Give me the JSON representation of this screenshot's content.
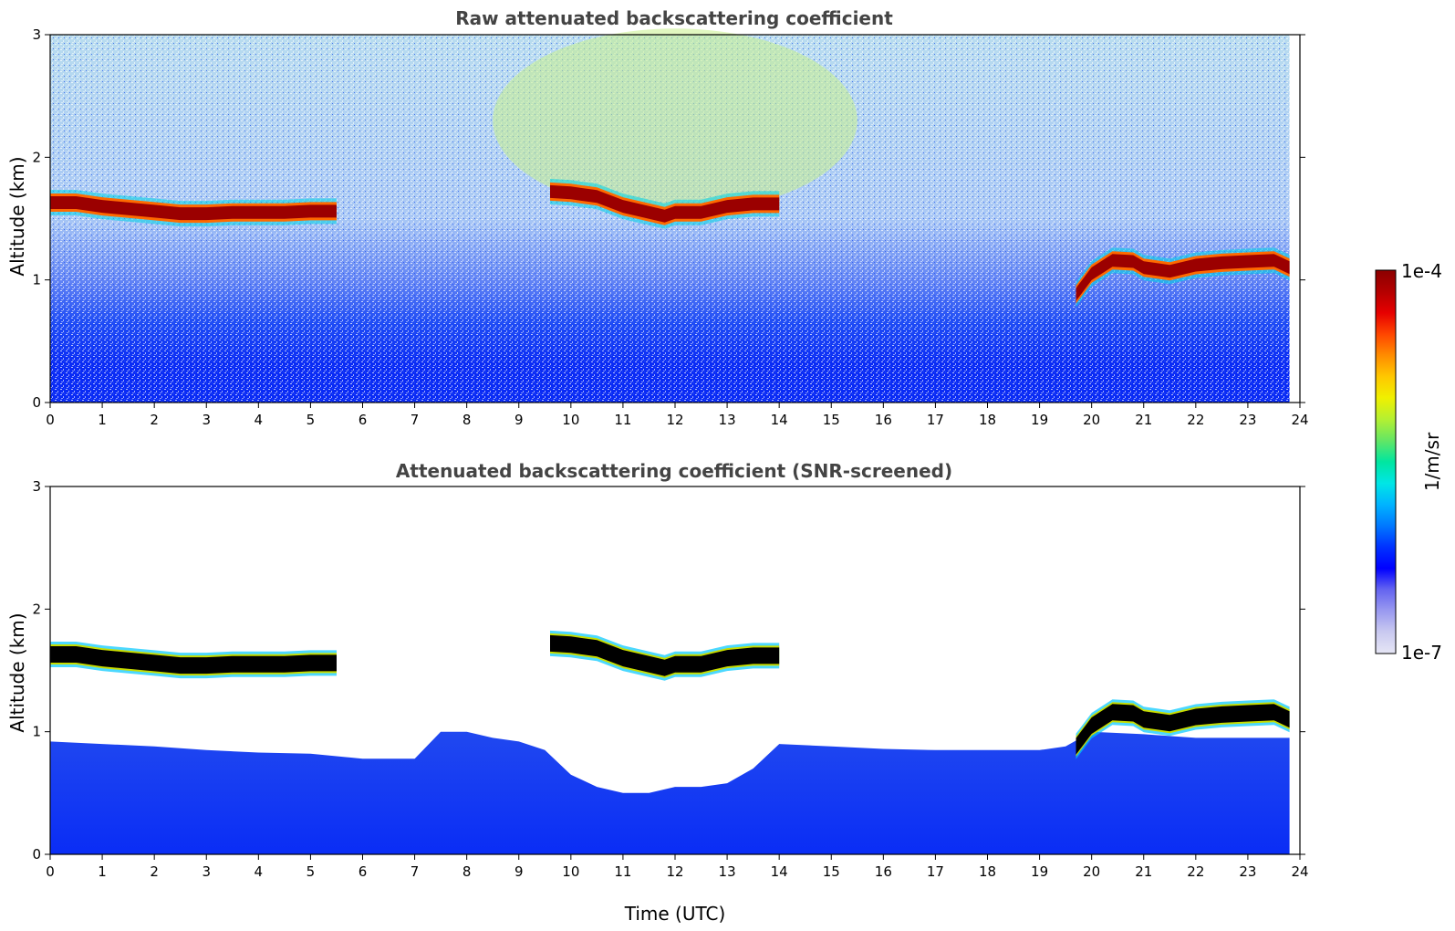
{
  "chart_data": [
    {
      "type": "heatmap",
      "id": "raw",
      "title": "Raw attenuated backscattering coefficient",
      "xlabel": "",
      "ylabel": "Altitude (km)",
      "xlim": [
        0,
        24
      ],
      "ylim": [
        0,
        3
      ],
      "xticks": [
        "0",
        "1",
        "2",
        "3",
        "4",
        "5",
        "6",
        "7",
        "8",
        "9",
        "10",
        "11",
        "12",
        "13",
        "14",
        "15",
        "16",
        "17",
        "18",
        "19",
        "20",
        "21",
        "22",
        "23",
        "24"
      ],
      "yticks": [
        "0",
        "1",
        "2",
        "3"
      ],
      "data_end_time": 23.8,
      "cloud_layers": [
        {
          "t": [
            0,
            0.5,
            1,
            1.5,
            2,
            2.5,
            3,
            3.5,
            4,
            4.5,
            5,
            5.5
          ],
          "alt": [
            1.63,
            1.63,
            1.6,
            1.58,
            1.56,
            1.54,
            1.54,
            1.55,
            1.55,
            1.55,
            1.56,
            1.56
          ]
        },
        {
          "t": [
            9.6,
            10,
            10.5,
            11,
            11.5,
            11.8,
            12,
            12.5,
            13,
            13.5,
            14
          ],
          "alt": [
            1.72,
            1.71,
            1.68,
            1.6,
            1.55,
            1.52,
            1.55,
            1.55,
            1.6,
            1.62,
            1.62
          ]
        },
        {
          "t": [
            19.7,
            20,
            20.4,
            20.8,
            21,
            21.5,
            22,
            22.5,
            23,
            23.5,
            23.8
          ],
          "alt": [
            0.88,
            1.05,
            1.16,
            1.15,
            1.1,
            1.07,
            1.12,
            1.14,
            1.15,
            1.16,
            1.1
          ]
        }
      ]
    },
    {
      "type": "heatmap",
      "id": "snr",
      "title": "Attenuated backscattering coefficient (SNR-screened)",
      "xlabel": "Time (UTC)",
      "ylabel": "Altitude (km)",
      "xlim": [
        0,
        24
      ],
      "ylim": [
        0,
        3
      ],
      "xticks": [
        "0",
        "1",
        "2",
        "3",
        "4",
        "5",
        "6",
        "7",
        "8",
        "9",
        "10",
        "11",
        "12",
        "13",
        "14",
        "15",
        "16",
        "17",
        "18",
        "19",
        "20",
        "21",
        "22",
        "23",
        "24"
      ],
      "yticks": [
        "0",
        "1",
        "2",
        "3"
      ],
      "boundary_layer_top": {
        "t": [
          0,
          1,
          2,
          3,
          4,
          5,
          6,
          7,
          7.5,
          8,
          8.5,
          9,
          9.5,
          10,
          10.5,
          11,
          11.5,
          12,
          12.5,
          13,
          13.5,
          14,
          15,
          16,
          17,
          18,
          19,
          19.5,
          20,
          21,
          22,
          23,
          23.8
        ],
        "alt": [
          0.92,
          0.9,
          0.88,
          0.85,
          0.83,
          0.82,
          0.78,
          0.78,
          1.0,
          1.0,
          0.95,
          0.92,
          0.85,
          0.65,
          0.55,
          0.5,
          0.5,
          0.55,
          0.55,
          0.58,
          0.7,
          0.9,
          0.88,
          0.86,
          0.85,
          0.85,
          0.85,
          0.88,
          1.0,
          0.98,
          0.95,
          0.95,
          0.95
        ]
      }
    }
  ],
  "colorbar": {
    "label": "1/m/sr",
    "max_label": "1e-4",
    "min_label": "1e-7",
    "colors": [
      "#e6e6f5",
      "#c9c9f0",
      "#9a9af0",
      "#6464f0",
      "#0000ff",
      "#0032ff",
      "#0078ff",
      "#00b4ff",
      "#00e6e6",
      "#00e6a0",
      "#64e664",
      "#b4f032",
      "#f0f000",
      "#ffc800",
      "#ff8c00",
      "#ff4600",
      "#e60000",
      "#b40000",
      "#8b0000"
    ]
  }
}
